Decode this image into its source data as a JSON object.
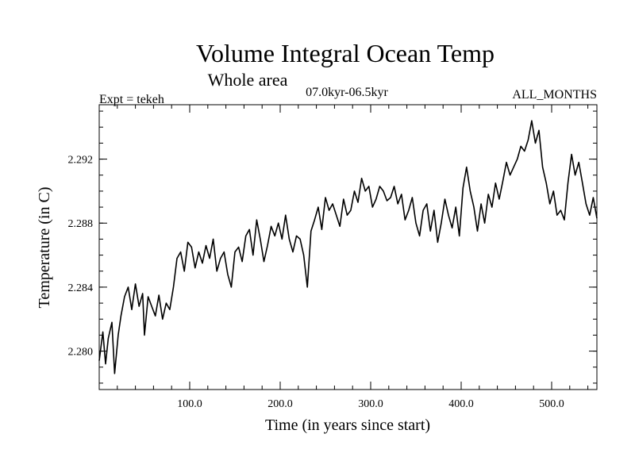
{
  "chart_data": {
    "type": "line",
    "title": "Volume Integral Ocean Temp",
    "subtitle": "Whole area",
    "period": "07.0kyr-06.5kyr",
    "experiment": "Expt = tekeh",
    "season": "ALL_MONTHS",
    "xlabel": "Time (in years since start)",
    "ylabel": "Temperature (in C)",
    "xlim": [
      0,
      550
    ],
    "ylim": [
      2.2776,
      2.2954
    ],
    "x_ticks": [
      {
        "value": 100,
        "label": "100.0"
      },
      {
        "value": 200,
        "label": "200.0"
      },
      {
        "value": 300,
        "label": "300.0"
      },
      {
        "value": 400,
        "label": "400.0"
      },
      {
        "value": 500,
        "label": "500.0"
      }
    ],
    "y_ticks": [
      {
        "value": 2.28,
        "label": "2.280"
      },
      {
        "value": 2.284,
        "label": "2.284"
      },
      {
        "value": 2.288,
        "label": "2.288"
      },
      {
        "value": 2.292,
        "label": "2.292"
      }
    ],
    "x_minor_step": 20,
    "y_minor_step": 0.001,
    "series": [
      {
        "name": "Volume integral ocean temperature",
        "x": [
          0,
          4,
          7,
          10,
          14,
          17,
          21,
          24,
          28,
          32,
          36,
          40,
          44,
          48,
          50,
          54,
          58,
          62,
          66,
          70,
          74,
          78,
          82,
          86,
          90,
          94,
          98,
          102,
          106,
          110,
          114,
          118,
          122,
          126,
          130,
          134,
          138,
          142,
          146,
          150,
          154,
          158,
          162,
          166,
          170,
          174,
          178,
          182,
          186,
          190,
          194,
          198,
          202,
          206,
          210,
          214,
          218,
          222,
          226,
          230,
          234,
          238,
          242,
          246,
          250,
          254,
          258,
          262,
          266,
          270,
          274,
          278,
          282,
          286,
          290,
          294,
          298,
          302,
          306,
          310,
          314,
          318,
          322,
          326,
          330,
          334,
          338,
          342,
          346,
          350,
          354,
          358,
          362,
          366,
          370,
          374,
          378,
          382,
          386,
          390,
          394,
          398,
          402,
          406,
          410,
          414,
          418,
          422,
          426,
          430,
          434,
          438,
          442,
          446,
          450,
          454,
          458,
          462,
          466,
          470,
          474,
          478,
          482,
          486,
          490,
          494,
          498,
          502,
          506,
          510,
          514,
          518,
          522,
          526,
          530,
          534,
          538,
          542,
          546,
          550
        ],
        "values": [
          2.2794,
          2.2812,
          2.2792,
          2.2808,
          2.2818,
          2.2786,
          2.281,
          2.2822,
          2.2834,
          2.284,
          2.2826,
          2.2842,
          2.2828,
          2.2836,
          2.281,
          2.2834,
          2.2828,
          2.2822,
          2.2835,
          2.282,
          2.283,
          2.2826,
          2.284,
          2.2858,
          2.2862,
          2.285,
          2.2868,
          2.2865,
          2.2852,
          2.2862,
          2.2855,
          2.2866,
          2.2858,
          2.287,
          2.285,
          2.2858,
          2.2862,
          2.2848,
          2.284,
          2.2862,
          2.2865,
          2.2856,
          2.2872,
          2.2876,
          2.286,
          2.2882,
          2.287,
          2.2856,
          2.2866,
          2.2878,
          2.2872,
          2.288,
          2.287,
          2.2885,
          2.287,
          2.2862,
          2.2872,
          2.287,
          2.286,
          2.284,
          2.2875,
          2.2882,
          2.289,
          2.2876,
          2.2896,
          2.2888,
          2.2892,
          2.2885,
          2.2878,
          2.2895,
          2.2885,
          2.2888,
          2.29,
          2.2893,
          2.2908,
          2.29,
          2.2903,
          2.289,
          2.2895,
          2.2903,
          2.29,
          2.2894,
          2.2896,
          2.2903,
          2.2892,
          2.2898,
          2.2882,
          2.2888,
          2.2896,
          2.288,
          2.2872,
          2.2888,
          2.2892,
          2.2875,
          2.2888,
          2.2868,
          2.288,
          2.2895,
          2.2885,
          2.2877,
          2.289,
          2.2872,
          2.2902,
          2.2915,
          2.29,
          2.289,
          2.2875,
          2.2892,
          2.288,
          2.2898,
          2.289,
          2.2905,
          2.2895,
          2.2906,
          2.2918,
          2.291,
          2.2915,
          2.292,
          2.2928,
          2.2925,
          2.2932,
          2.2944,
          2.293,
          2.2938,
          2.2915,
          2.2905,
          2.2892,
          2.29,
          2.2885,
          2.2888,
          2.2882,
          2.2905,
          2.2923,
          2.291,
          2.2918,
          2.2905,
          2.2892,
          2.2885,
          2.2896,
          2.2883
        ]
      }
    ]
  }
}
